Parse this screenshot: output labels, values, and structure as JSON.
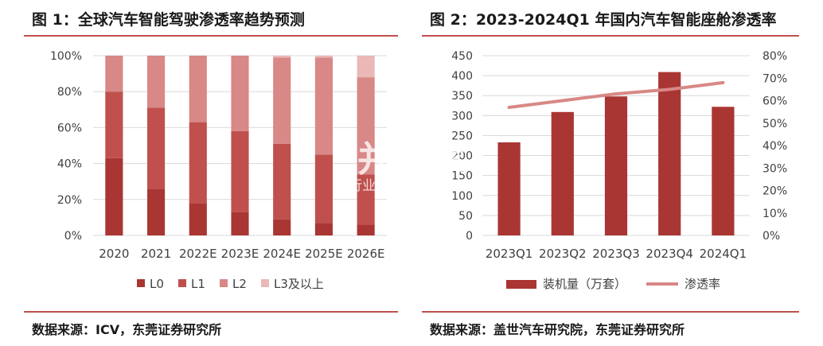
{
  "chart_data": [
    {
      "type": "bar",
      "stacked": true,
      "percent": true,
      "title": "图 1：全球汽车智能驾驶渗透率趋势预测",
      "categories": [
        "2020",
        "2021",
        "2022E",
        "2023E",
        "2024E",
        "2025E",
        "2026E"
      ],
      "series": [
        {
          "name": "L0",
          "color": "#a93633",
          "values": [
            43,
            26,
            18,
            13,
            9,
            7,
            6
          ]
        },
        {
          "name": "L1",
          "color": "#c0504d",
          "values": [
            37,
            45,
            45,
            45,
            42,
            38,
            28
          ]
        },
        {
          "name": "L2",
          "color": "#d88886",
          "values": [
            20,
            29,
            37,
            42,
            48,
            54,
            54
          ]
        },
        {
          "name": "L3及以上",
          "color": "#e9b8b7",
          "values": [
            0,
            0,
            0,
            0,
            1,
            1,
            12
          ]
        }
      ],
      "y_ticks": [
        "0%",
        "20%",
        "40%",
        "60%",
        "80%",
        "100%"
      ],
      "ylim": [
        0,
        100
      ],
      "grid": true,
      "legend_position": "bottom",
      "source": "数据来源：ICV，东莞证券研究所"
    },
    {
      "type": "bar",
      "combo": "bar+line",
      "title": "图 2：2023-2024Q1 年国内汽车智能座舱渗透率",
      "categories": [
        "2023Q1",
        "2023Q2",
        "2023Q3",
        "2023Q4",
        "2024Q1"
      ],
      "series": [
        {
          "name": "装机量（万套）",
          "type": "bar",
          "axis": "left",
          "color": "#a93633",
          "values": [
            233,
            309,
            348,
            409,
            322
          ]
        },
        {
          "name": "渗透率",
          "type": "line",
          "axis": "right",
          "color": "#d88886",
          "values": [
            57,
            60,
            63,
            65,
            68
          ]
        }
      ],
      "y_ticks_left": [
        "0",
        "50",
        "100",
        "150",
        "200",
        "250",
        "300",
        "350",
        "400",
        "450"
      ],
      "y_ticks_right": [
        "0%",
        "10%",
        "20%",
        "30%",
        "40%",
        "50%",
        "60%",
        "70%",
        "80%"
      ],
      "ylim_left": [
        0,
        450
      ],
      "ylim_right": [
        0,
        80
      ],
      "grid": true,
      "legend_position": "bottom",
      "source": "数据来源：盖世汽车研究院，东莞证券研究所"
    }
  ],
  "watermark": {
    "line1": "并购家",
    "line2": "行业报告 IPOIPO.CN"
  }
}
